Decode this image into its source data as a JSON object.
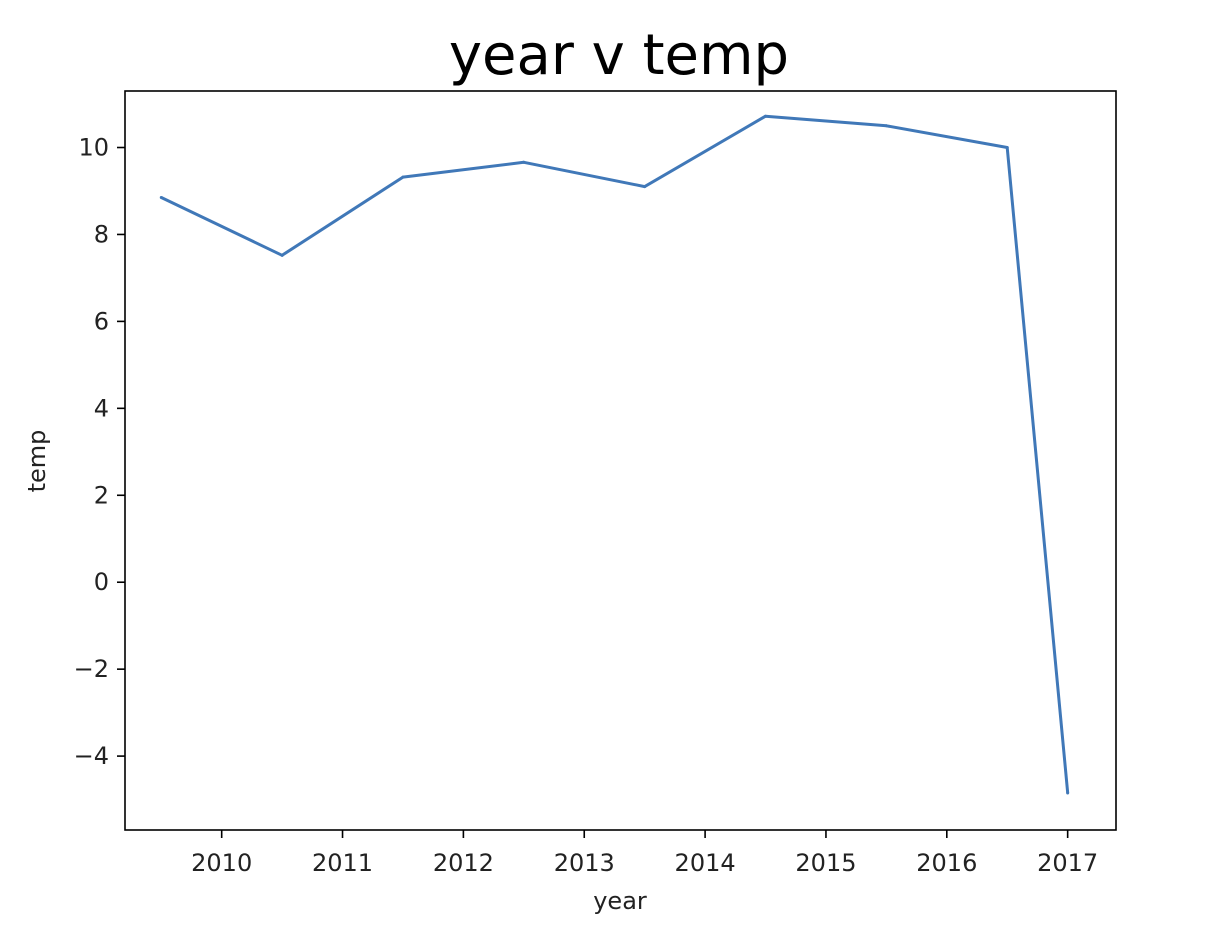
{
  "chart_data": {
    "type": "line",
    "title": "year v temp",
    "xlabel": "year",
    "ylabel": "temp",
    "x_ticks": [
      "2010",
      "2011",
      "2012",
      "2013",
      "2014",
      "2015",
      "2016",
      "2017"
    ],
    "y_ticks": [
      "−4",
      "−2",
      "0",
      "2",
      "4",
      "6",
      "8",
      "10"
    ],
    "xlim": [
      2009.2,
      2017.4
    ],
    "ylim": [
      -5.7,
      11.3
    ],
    "grid": false,
    "legend": "none",
    "series": [
      {
        "color": "#4078b8",
        "x": [
          2009.5,
          2010.5,
          2011.5,
          2012.5,
          2013.5,
          2014.5,
          2015.5,
          2016.5,
          2017.0
        ],
        "y": [
          8.85,
          7.52,
          9.32,
          9.66,
          9.1,
          10.72,
          10.5,
          10.0,
          -4.85
        ]
      }
    ]
  }
}
